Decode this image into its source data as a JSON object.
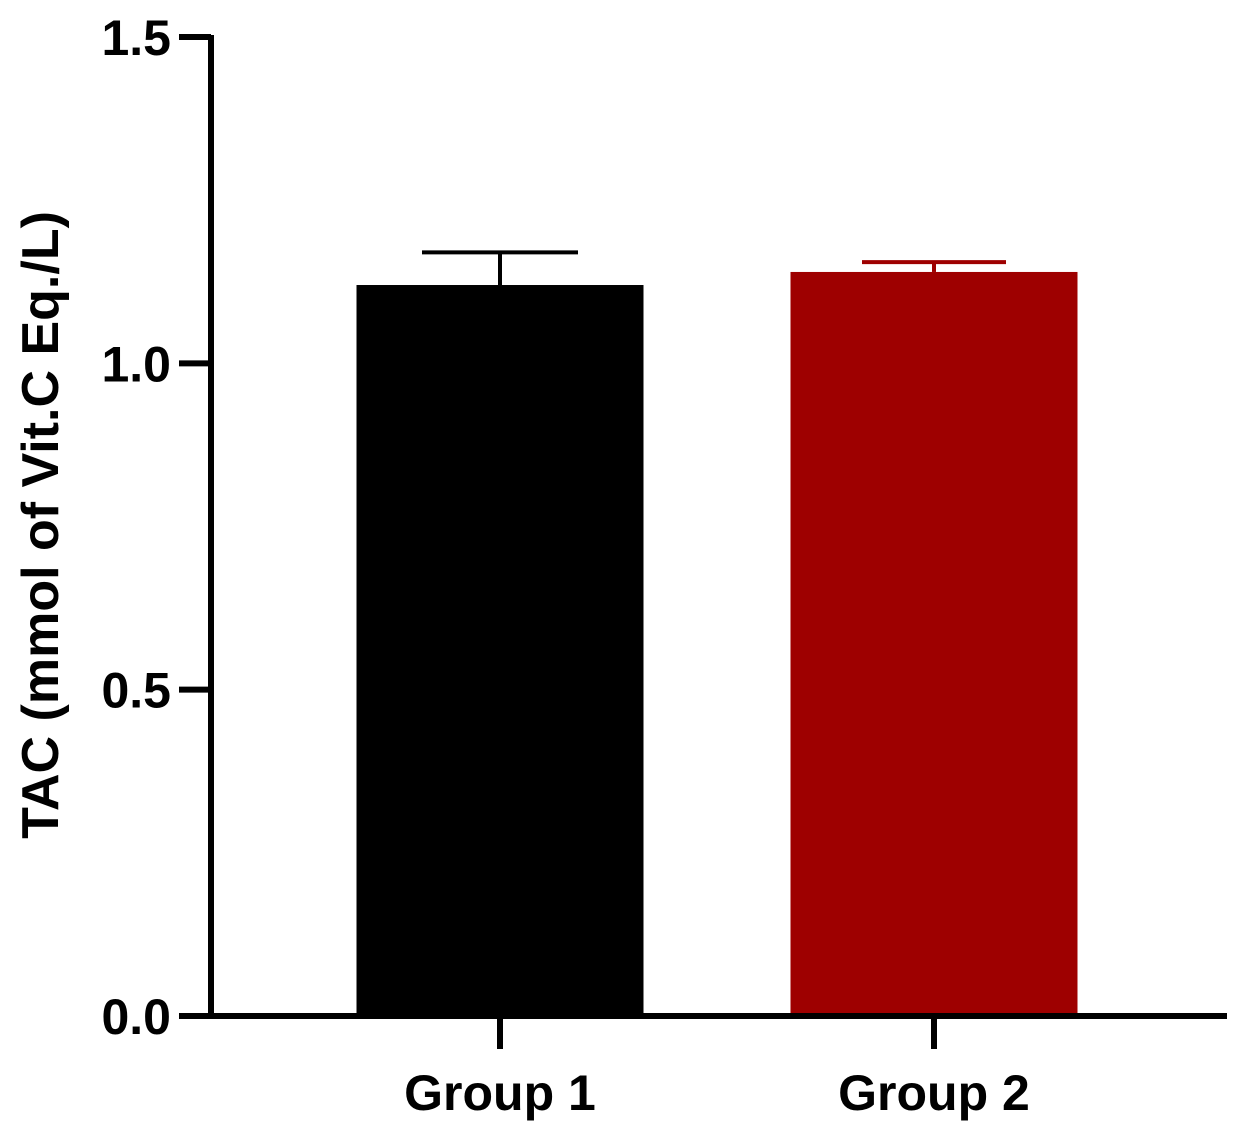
{
  "chart_data": {
    "type": "bar",
    "title": "",
    "xlabel": "",
    "ylabel": "TAC (mmol of Vit.C Eq./L)",
    "categories": [
      "Group 1",
      "Group 2"
    ],
    "values": [
      1.12,
      1.14
    ],
    "error_upper": [
      1.17,
      1.155
    ],
    "colors": [
      "#000000",
      "#9e0000"
    ],
    "ylim": [
      0,
      1.5
    ],
    "y_ticks": [
      "0.0",
      "0.5",
      "1.0",
      "1.5"
    ],
    "grid": false,
    "legend": "none"
  }
}
